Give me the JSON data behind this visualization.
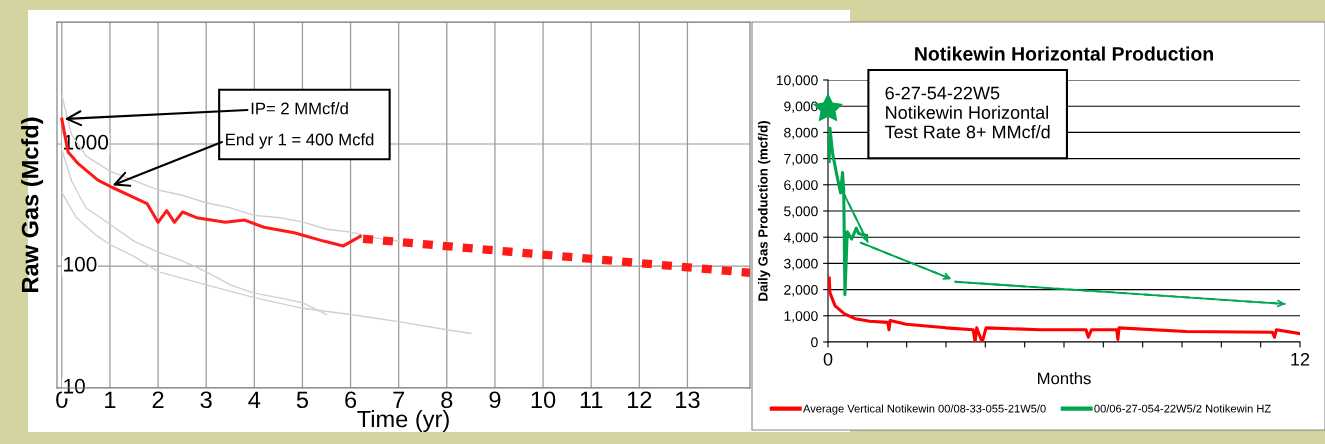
{
  "chart_data": [
    {
      "type": "line",
      "xlabel": "Time (yr)",
      "ylabel": "Raw Gas (Mcfd)",
      "log": "y",
      "xlim": [
        -0.1,
        14.3
      ],
      "ylim": [
        10,
        10000
      ],
      "xticks": [
        0,
        1,
        2,
        3,
        4,
        5,
        6,
        7,
        8,
        9,
        10,
        11,
        12,
        13
      ],
      "yticks": [
        10,
        100,
        1000,
        {
          "value": 10000,
          "label": null
        }
      ],
      "grid": true,
      "legend": false,
      "series": [
        {
          "color": "#d0d0d0",
          "x": [
            0,
            0.2,
            0.5,
            1,
            1.5,
            2,
            2.5,
            3,
            3.5,
            4,
            4.5,
            5,
            5.5,
            6,
            6.5,
            7
          ],
          "values": [
            2500,
            1200,
            800,
            600,
            500,
            420,
            380,
            330,
            300,
            260,
            250,
            230,
            200,
            190,
            170,
            160
          ]
        },
        {
          "color": "#d0d0d0",
          "x": [
            0,
            0.2,
            0.5,
            1,
            1.5,
            2,
            2.5,
            3,
            3.5,
            4,
            4.5,
            5,
            5.5
          ],
          "values": [
            900,
            500,
            300,
            220,
            160,
            130,
            110,
            90,
            70,
            60,
            55,
            50,
            40
          ]
        },
        {
          "color": "#d0d0d0",
          "x": [
            0,
            0.3,
            0.7,
            1,
            1.5,
            2,
            3,
            4,
            5,
            6,
            7,
            8,
            8.5
          ],
          "values": [
            400,
            250,
            180,
            150,
            120,
            90,
            70,
            55,
            45,
            40,
            35,
            30,
            28
          ]
        },
        {
          "color": "#ff1a1a",
          "x": [
            0,
            0.13,
            0.34,
            0.75,
            1.05,
            1.46,
            1.77,
            2.0,
            2.18,
            2.34,
            2.51,
            2.8,
            3.4,
            3.8,
            4.2,
            4.83,
            5.44,
            5.85,
            6.2
          ],
          "values": [
            1600,
            860,
            690,
            506,
            440,
            370,
            325,
            228,
            284,
            228,
            277,
            249,
            228,
            238,
            208,
            187,
            160,
            146,
            175
          ]
        },
        {
          "color": "#ff1a1a",
          "line_style": "dotted",
          "x": [
            6.26,
            14.3
          ],
          "values": [
            167,
            88
          ]
        }
      ],
      "annotations": [
        {
          "text": "IP= 2 MMcf/d",
          "x": 0,
          "y": 1600
        },
        {
          "text": "End yr 1 = 400 Mcfd",
          "x": 1,
          "y": 450
        }
      ]
    },
    {
      "type": "line",
      "title": "Notikewin Horizontal Production",
      "xlabel": "Months",
      "ylabel": "Daily Gas Production (mcf/d)",
      "xlim": [
        0,
        12
      ],
      "ylim": [
        0,
        10000
      ],
      "xticks": [
        0,
        {
          "value": 1,
          "label": null
        },
        {
          "value": 2,
          "label": null
        },
        {
          "value": 3,
          "label": null
        },
        {
          "value": 4,
          "label": null
        },
        {
          "value": 5,
          "label": null
        },
        {
          "value": 6,
          "label": null
        },
        {
          "value": 7,
          "label": null
        },
        {
          "value": 8,
          "label": null
        },
        {
          "value": 9,
          "label": null
        },
        {
          "value": 10,
          "label": null
        },
        {
          "value": 11,
          "label": null
        },
        12
      ],
      "yticks": [
        0,
        {
          "value": 1000,
          "label": "1,000"
        },
        {
          "value": 2000,
          "label": "2,000"
        },
        {
          "value": 3000,
          "label": "3,000"
        },
        {
          "value": 4000,
          "label": "4,000"
        },
        {
          "value": 5000,
          "label": "5,000"
        },
        {
          "value": 6000,
          "label": "6,000"
        },
        {
          "value": 7000,
          "label": "7,000"
        },
        {
          "value": 8000,
          "label": "8,000"
        },
        {
          "value": 9000,
          "label": "9,000"
        },
        {
          "value": 10000,
          "label": "10,000"
        }
      ],
      "grid": "y",
      "legend": "bottom",
      "series": [
        {
          "name": "Average Vertical Notikewin 00/08-33-055-21W5/0",
          "color": "#ff0000",
          "x": [
            0.03,
            0.05,
            0.18,
            0.42,
            0.69,
            1.06,
            1.52,
            1.55,
            1.58,
            1.99,
            3.0,
            3.69,
            3.74,
            3.78,
            3.92,
            4.02,
            5.4,
            6.56,
            6.62,
            6.7,
            7.34,
            7.37,
            7.4,
            9.1,
            11.3,
            11.35,
            11.4,
            12
          ],
          "values": [
            2440,
            1880,
            1380,
            1070,
            890,
            790,
            750,
            470,
            820,
            680,
            540,
            470,
            0,
            540,
            0,
            540,
            470,
            470,
            180,
            470,
            470,
            100,
            540,
            400,
            370,
            180,
            470,
            320
          ]
        },
        {
          "name": "00/06-27-054-22W5/2 Notikewin HZ",
          "color": "#00a550",
          "x": [
            0.03,
            0.05,
            0.12,
            0.23,
            0.32,
            0.37,
            0.4,
            0.43,
            0.49,
            0.6,
            0.72,
            0.78,
            0.97
          ],
          "values": [
            6890,
            8160,
            7170,
            6330,
            5690,
            6470,
            5760,
            1810,
            4210,
            3930,
            4350,
            4140,
            4070
          ]
        },
        {
          "color": "#00a550",
          "line_style": "dashed",
          "x": [
            0.37,
            1.02,
            null,
            0.83,
            3.14,
            null,
            3.23,
            11.63
          ],
          "values": [
            5760,
            3790,
            null,
            3790,
            2400,
            null,
            2300,
            1450
          ]
        }
      ],
      "annotations": [
        "6-27-54-22W5\nNotikewin Horizontal\nTest Rate 8+ MMcf/d"
      ]
    }
  ]
}
